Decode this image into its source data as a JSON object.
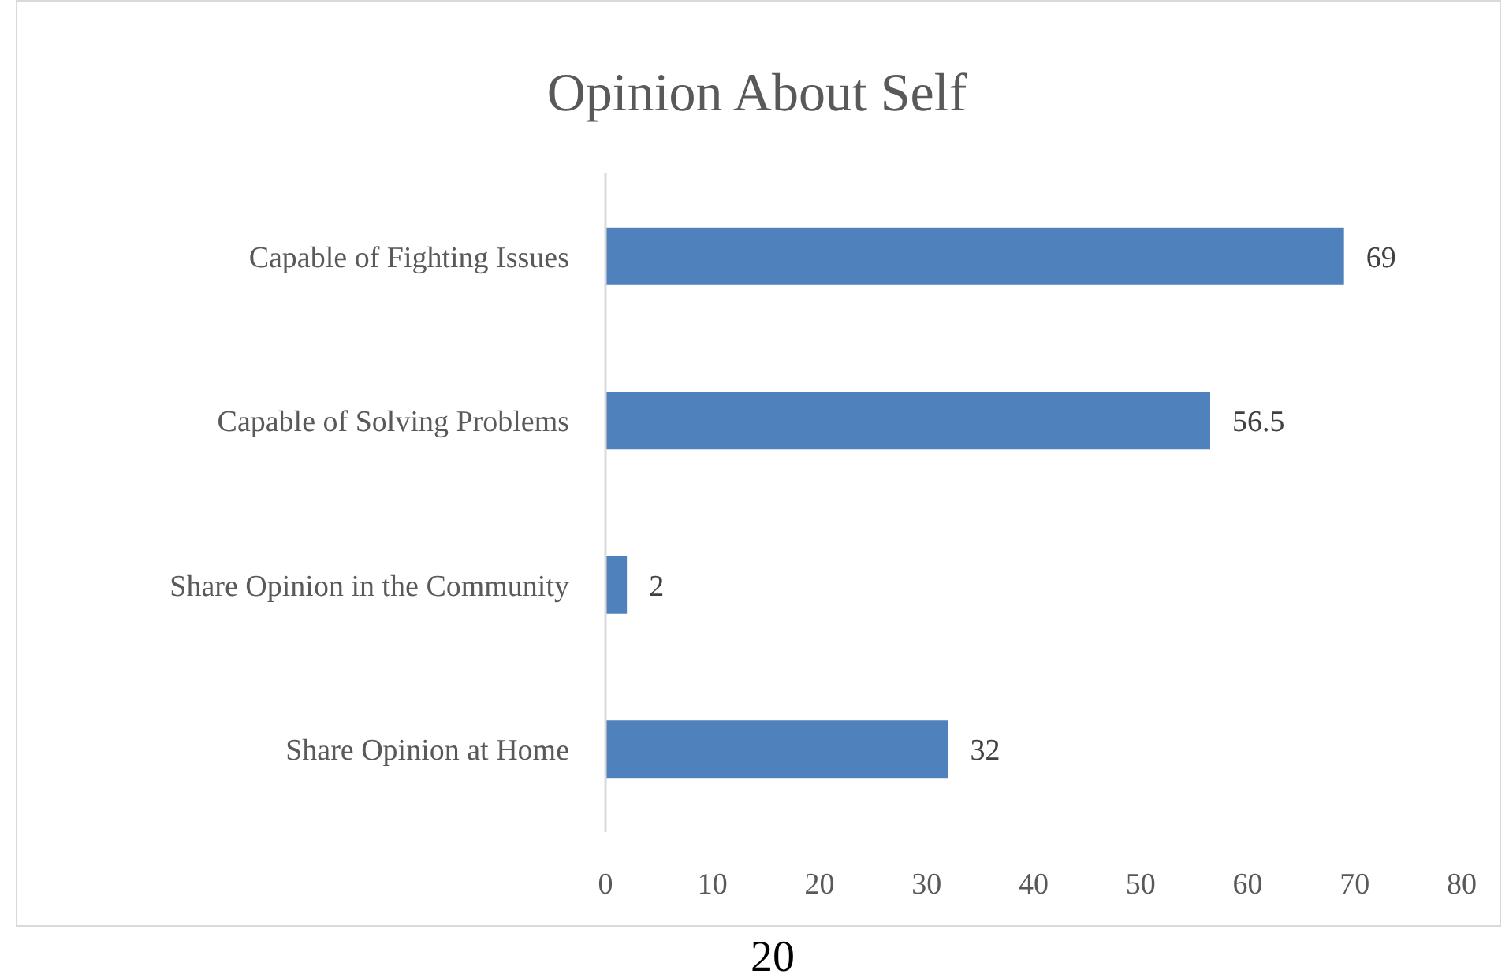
{
  "chart_data": {
    "type": "bar",
    "title": "Opinion About Self",
    "orientation": "horizontal",
    "categories": [
      "Capable of Fighting Issues",
      "Capable of Solving Problems",
      "Share Opinion in the Community",
      "Share Opinion at Home"
    ],
    "values": [
      69,
      56.5,
      2,
      32
    ],
    "color": "#4f81bd",
    "data_labels": true,
    "xlim": [
      0,
      80
    ],
    "xticks": [
      0,
      10,
      20,
      30,
      40,
      50,
      60,
      70,
      80
    ],
    "annotations": [
      "20"
    ]
  }
}
